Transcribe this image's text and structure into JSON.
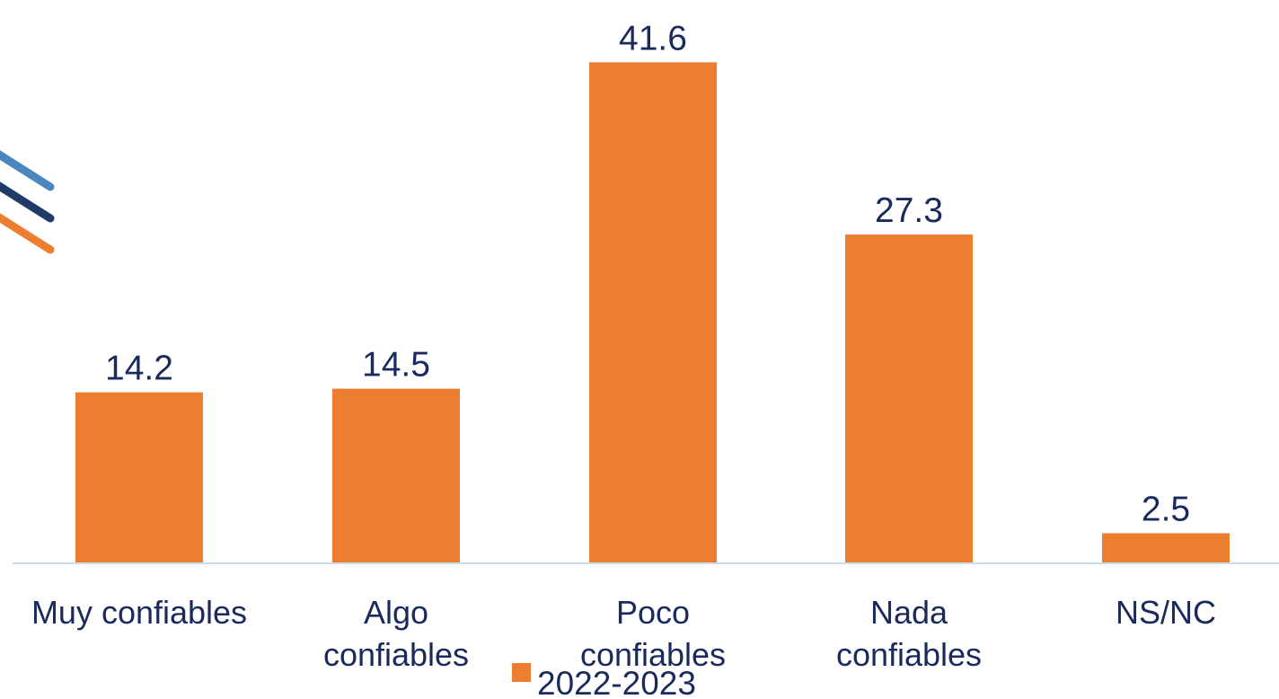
{
  "chart_data": {
    "type": "bar",
    "categories": [
      [
        "Muy confiables"
      ],
      [
        "Algo",
        "confiables"
      ],
      [
        "Poco",
        "confiables"
      ],
      [
        "Nada",
        "confiables"
      ],
      [
        "NS/NC"
      ]
    ],
    "series": [
      {
        "name": "2022-2023",
        "values": [
          14.2,
          14.5,
          41.6,
          27.3,
          2.5
        ]
      }
    ],
    "value_labels": [
      "14.2",
      "14.5",
      "41.6",
      "27.3",
      "2.5"
    ],
    "ylim": [
      0,
      42
    ],
    "grid": false,
    "legend_position": "bottom",
    "colors": {
      "bar": "#ed7d31",
      "text": "#1a2a5c",
      "axis": "#c9dceb"
    }
  },
  "logo": {
    "stripe_colors": [
      "#4a86c0",
      "#1f3a66",
      "#ed7d31"
    ]
  }
}
